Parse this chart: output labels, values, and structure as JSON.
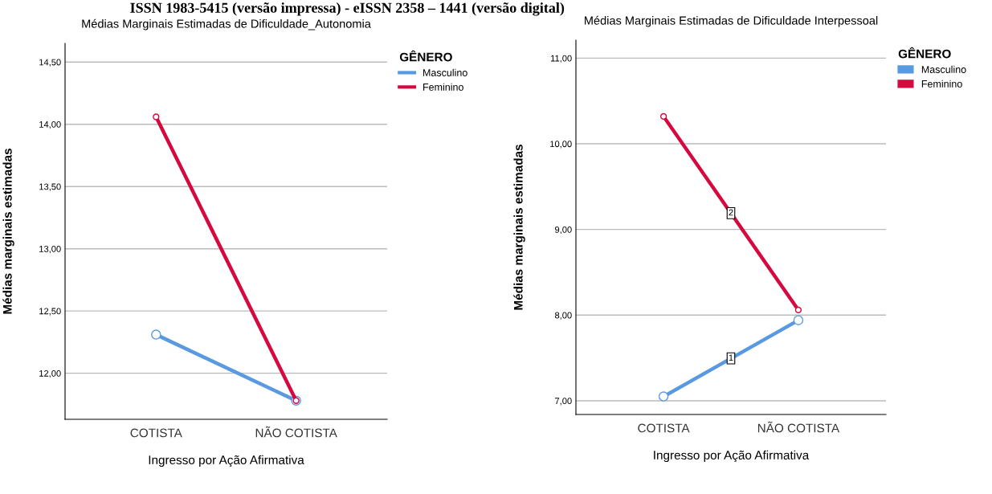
{
  "chart_data": [
    {
      "type": "line",
      "title": "Médias Marginais Estimadas de Dificuldade_Autonomia",
      "xlabel": "Ingresso por Ação Afirmativa",
      "ylabel": "Médias marginais estimadas",
      "legend_title": "GÊNERO",
      "categories": [
        "COTISTA",
        "NÃO COTISTA"
      ],
      "series": [
        {
          "name": "Masculino",
          "color": "#5899e2",
          "values": [
            12.31,
            11.78
          ]
        },
        {
          "name": "Feminino",
          "color": "#d6093f",
          "values": [
            14.06,
            11.78
          ]
        }
      ],
      "ylim": [
        11.63,
        14.65
      ],
      "yticks": [
        {
          "value": 12,
          "label": "12,00"
        },
        {
          "value": 12.5,
          "label": "12,50"
        },
        {
          "value": 13,
          "label": "13,00"
        },
        {
          "value": 13.5,
          "label": "13,50"
        },
        {
          "value": 14,
          "label": "14,00"
        },
        {
          "value": 14.5,
          "label": "14,50"
        }
      ],
      "grid": "y",
      "legend": "top right",
      "marker": "circle",
      "line_style": "solid",
      "annotations": [
        "ISSN 1983-5415 (versão impressa) - eISSN 2358 – 1441 (versão digital)"
      ]
    },
    {
      "type": "line",
      "title": "Médias Marginais Estimadas de Dificuldade Interpessoal",
      "xlabel": "Ingresso por Ação Afirmativa",
      "ylabel": "Médias marginais estimadas",
      "legend_title": "GÊNERO",
      "categories": [
        "COTISTA",
        "NÃO COTISTA"
      ],
      "series": [
        {
          "name": "Masculino",
          "color": "#5899e2",
          "values": [
            7.05,
            7.94
          ]
        },
        {
          "name": "Feminino",
          "color": "#d6093f",
          "values": [
            10.32,
            8.06
          ]
        }
      ],
      "ylim": [
        6.84,
        11.21
      ],
      "yticks": [
        {
          "value": 7,
          "label": "7,00"
        },
        {
          "value": 8,
          "label": "8,00"
        },
        {
          "value": 9,
          "label": "9,00"
        },
        {
          "value": 10,
          "label": "10,00"
        },
        {
          "value": 11,
          "label": "11,00"
        }
      ],
      "grid": "y",
      "legend": "top right",
      "marker": "circle",
      "line_style": "solid",
      "annotations": [
        "1",
        "2"
      ]
    }
  ]
}
